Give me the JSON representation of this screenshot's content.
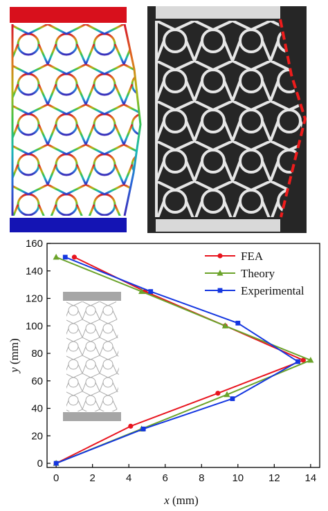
{
  "chart_data": {
    "type": "line",
    "xlabel_var": "x",
    "xlabel_unit": " (mm)",
    "ylabel_var": "y",
    "ylabel_unit": " (mm)",
    "xlim": [
      -0.5,
      14.5
    ],
    "ylim": [
      -3,
      160
    ],
    "xticks": [
      0,
      2,
      4,
      6,
      8,
      10,
      12,
      14
    ],
    "yticks": [
      0,
      20,
      40,
      60,
      80,
      100,
      120,
      140,
      160
    ],
    "grid": false,
    "legend_position": "top-right",
    "series": [
      {
        "name": "FEA",
        "color": "#e8141e",
        "marker": "circle",
        "x": [
          1.0,
          4.9,
          9.3,
          13.6,
          8.9,
          4.1,
          0.0
        ],
        "y": [
          150,
          125,
          100,
          75,
          51,
          27,
          0
        ]
      },
      {
        "name": "Theory",
        "color": "#6ba32a",
        "marker": "triangle",
        "x": [
          0.0,
          4.7,
          9.3,
          14.0,
          9.4,
          4.7,
          0.0
        ],
        "y": [
          150,
          125,
          100,
          75,
          50,
          25,
          0
        ]
      },
      {
        "name": "Experimental",
        "color": "#1436e0",
        "marker": "square",
        "x": [
          0.5,
          5.2,
          10.0,
          13.3,
          9.7,
          4.8,
          0.0
        ],
        "y": [
          150,
          125,
          102,
          74,
          47,
          25,
          0
        ]
      }
    ]
  }
}
